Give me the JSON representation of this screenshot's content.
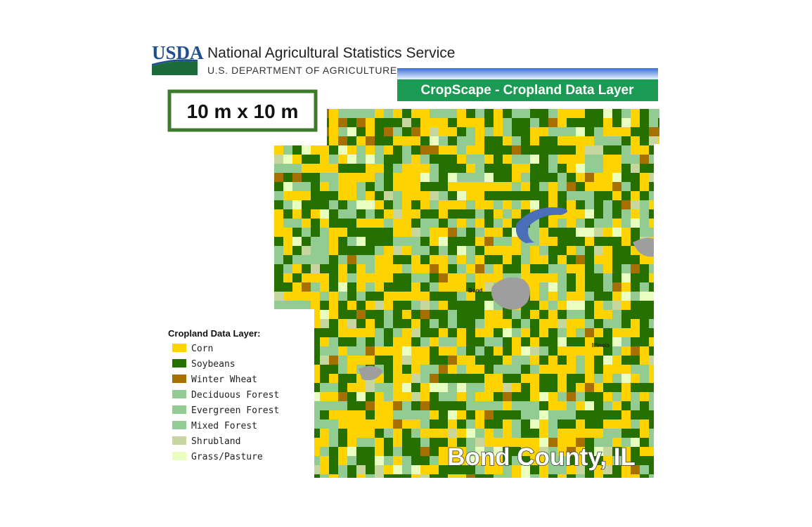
{
  "header": {
    "logo": "USDA",
    "agency": "National Agricultural Statistics Service",
    "department": "U.S. DEPARTMENT OF AGRICULTURE"
  },
  "banner": "CropScape - Cropland Data Layer",
  "resolution": "10 m x 10 m",
  "legend": {
    "title": "Cropland Data Layer:",
    "items": [
      {
        "label": "Corn",
        "color": "#ffd300"
      },
      {
        "label": "Soybeans",
        "color": "#267000"
      },
      {
        "label": "Winter Wheat",
        "color": "#a57000"
      },
      {
        "label": "Deciduous Forest",
        "color": "#93cc93"
      },
      {
        "label": "Evergreen Forest",
        "color": "#93cc93"
      },
      {
        "label": "Mixed Forest",
        "color": "#93cc93"
      },
      {
        "label": "Shrubland",
        "color": "#c6d69e"
      },
      {
        "label": "Grass/Pasture",
        "color": "#e8ffbf"
      }
    ]
  },
  "map": {
    "place_labels": [
      "Bond",
      "Illinois"
    ],
    "caption": "Bond County, IL"
  }
}
